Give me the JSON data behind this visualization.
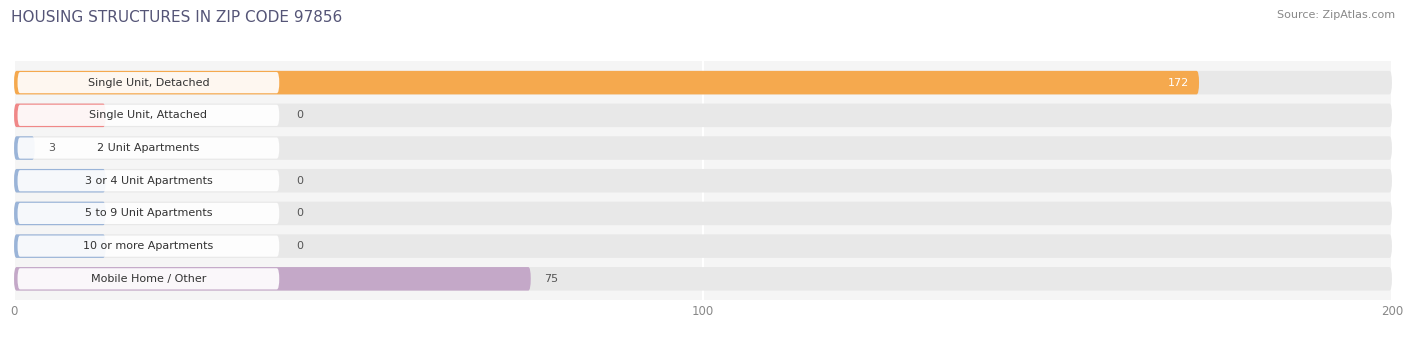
{
  "title": "HOUSING STRUCTURES IN ZIP CODE 97856",
  "source": "Source: ZipAtlas.com",
  "categories": [
    "Single Unit, Detached",
    "Single Unit, Attached",
    "2 Unit Apartments",
    "3 or 4 Unit Apartments",
    "5 to 9 Unit Apartments",
    "10 or more Apartments",
    "Mobile Home / Other"
  ],
  "values": [
    172,
    0,
    3,
    0,
    0,
    0,
    75
  ],
  "bar_colors": [
    "#f5a94e",
    "#f08888",
    "#9ab4d8",
    "#9ab4d8",
    "#9ab4d8",
    "#9ab4d8",
    "#c4a8c8"
  ],
  "xlim": [
    0,
    200
  ],
  "xticks": [
    0,
    100,
    200
  ],
  "fig_bg_color": "#ffffff",
  "plot_bg_color": "#f5f5f5",
  "bar_bg_color": "#e8e8e8",
  "grid_color": "#ffffff",
  "title_fontsize": 11,
  "source_fontsize": 8,
  "label_fontsize": 8,
  "value_fontsize": 8,
  "title_color": "#555577",
  "source_color": "#888888",
  "label_color_zero_values": [
    1,
    2,
    3,
    4,
    5
  ],
  "value_color_inside": "#ffffff",
  "value_color_outside": "#555555"
}
